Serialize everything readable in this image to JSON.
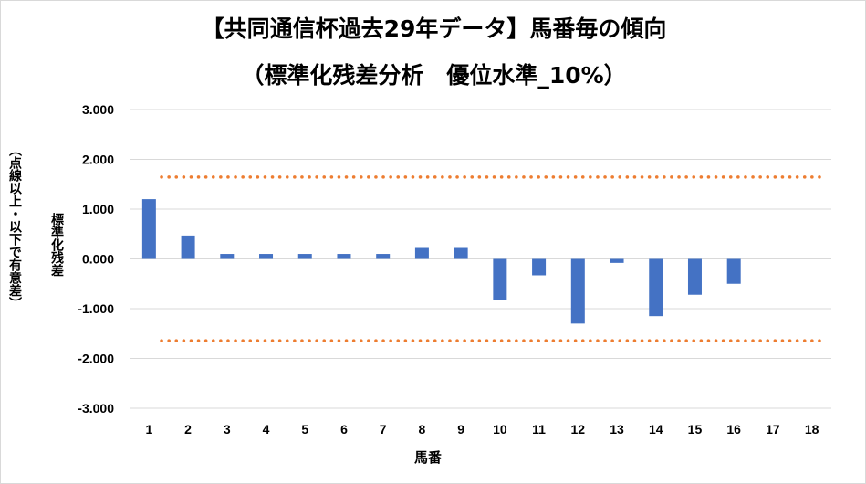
{
  "chart_data": {
    "type": "bar",
    "title": "【共同通信杯過去29年データ】馬番毎の傾向",
    "subtitle": "（標準化残差分析　優位水準_10%）",
    "xlabel": "馬番",
    "ylabel": "標準化残差",
    "ylabel_note": "（点線以上・以下で有意差）",
    "categories": [
      "1",
      "2",
      "3",
      "4",
      "5",
      "6",
      "7",
      "8",
      "9",
      "10",
      "11",
      "12",
      "13",
      "14",
      "15",
      "16",
      "17",
      "18"
    ],
    "values": [
      1.2,
      0.47,
      0.1,
      0.1,
      0.1,
      0.1,
      0.1,
      0.22,
      0.22,
      -0.83,
      -0.33,
      -1.3,
      -0.08,
      -1.15,
      -0.72,
      -0.5,
      0,
      0
    ],
    "ylim": [
      -3,
      3
    ],
    "yticks": [
      3,
      2,
      1,
      0,
      -1,
      -2,
      -3
    ],
    "ytick_labels": [
      "3.000",
      "2.000",
      "1.000",
      "0.000",
      "-1.000",
      "-2.000",
      "-3.000"
    ],
    "thresholds": [
      1.645,
      -1.645
    ],
    "grid": true,
    "legend": "none",
    "colors": {
      "bar": "#4472C4",
      "threshold": "#ED7D31",
      "grid": "#d9d9d9"
    }
  }
}
